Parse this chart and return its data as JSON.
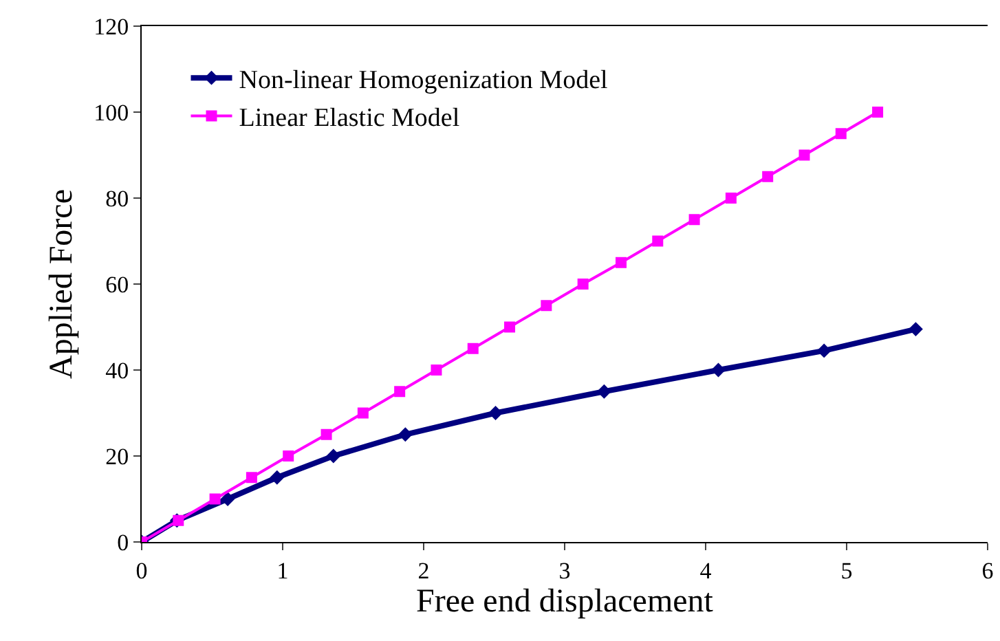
{
  "chart_data": {
    "type": "line",
    "xlabel": "Free end displacement",
    "ylabel": "Applied Force",
    "xlim": [
      0,
      6
    ],
    "xticks": [
      0,
      1,
      2,
      3,
      4,
      5,
      6
    ],
    "ylim": [
      0,
      120
    ],
    "yticks": [
      0,
      20,
      40,
      60,
      80,
      100,
      120
    ],
    "legend": "top left",
    "series": [
      {
        "name": "Non-linear Homogenization Model",
        "color": "#000080",
        "marker": "diamond",
        "x": [
          0,
          0.25,
          0.61,
          0.96,
          1.36,
          1.87,
          2.51,
          3.28,
          4.09,
          4.84,
          5.49
        ],
        "values": [
          0,
          5,
          10,
          15,
          20,
          25,
          30,
          35,
          40,
          44.5,
          49.5
        ]
      },
      {
        "name": "Linear Elastic Model",
        "color": "#ff00ff",
        "marker": "square",
        "x": [
          0,
          0.26,
          0.52,
          0.78,
          1.04,
          1.31,
          1.57,
          1.83,
          2.09,
          2.35,
          2.61,
          2.87,
          3.13,
          3.4,
          3.66,
          3.92,
          4.18,
          4.44,
          4.7,
          4.96,
          5.22
        ],
        "values": [
          0,
          5,
          10,
          15,
          20,
          25,
          30,
          35,
          40,
          45,
          50,
          55,
          60,
          65,
          70,
          75,
          80,
          85,
          90,
          95,
          100
        ]
      }
    ]
  }
}
